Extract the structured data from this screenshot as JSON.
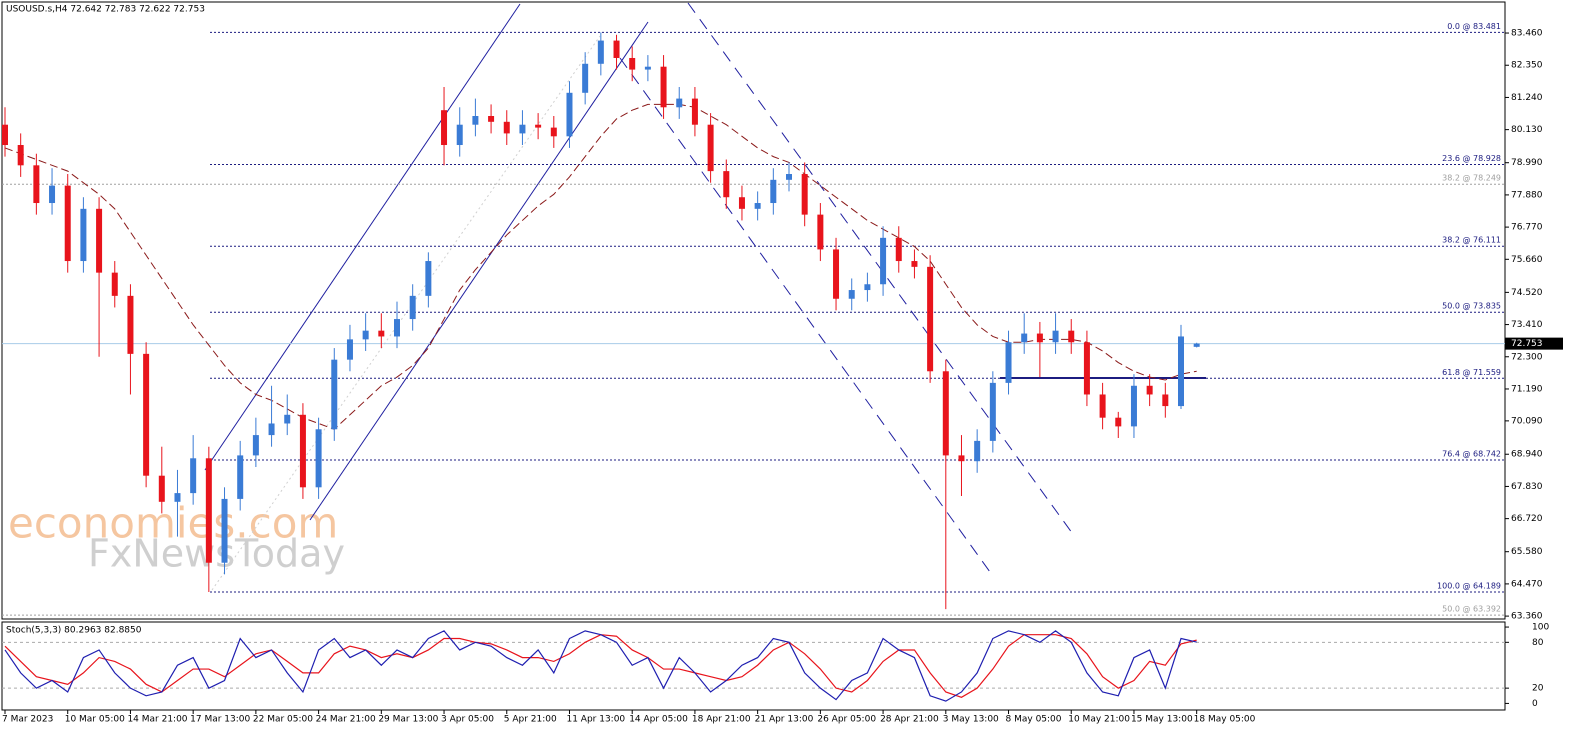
{
  "chart_data": [
    {
      "type": "candlestick",
      "header": "USOUSD.s,H4  72.642 72.783 72.622 72.753",
      "watermark": [
        "economies.com",
        "FxNewsToday"
      ],
      "categories": [
        "7 Mar 2023",
        null,
        null,
        null,
        "10 Mar 05:00",
        null,
        null,
        null,
        "14 Mar 21:00",
        null,
        null,
        null,
        "17 Mar 13:00",
        null,
        null,
        null,
        "22 Mar 05:00",
        null,
        null,
        null,
        "24 Mar 21:00",
        null,
        null,
        null,
        "29 Mar 13:00",
        null,
        null,
        null,
        "3 Apr 05:00",
        null,
        null,
        null,
        "5 Apr 21:00",
        null,
        null,
        null,
        "11 Apr 13:00",
        null,
        null,
        null,
        "14 Apr 05:00",
        null,
        null,
        null,
        "18 Apr 21:00",
        null,
        null,
        null,
        "21 Apr 13:00",
        null,
        null,
        null,
        "26 Apr 05:00",
        null,
        null,
        null,
        "28 Apr 21:00",
        null,
        null,
        null,
        "3 May 13:00",
        null,
        null,
        null,
        "8 May 05:00",
        null,
        null,
        null,
        "10 May 21:00",
        null,
        null,
        null,
        "15 May 13:00",
        null,
        null,
        null,
        "18 May 05:00"
      ],
      "open": [
        80.3,
        79.6,
        78.9,
        77.6,
        78.2,
        75.6,
        77.4,
        75.2,
        74.4,
        72.4,
        68.2,
        67.3,
        67.6,
        68.8,
        65.2,
        67.4,
        68.9,
        69.6,
        70.0,
        70.3,
        67.8,
        69.8,
        72.2,
        72.9,
        73.2,
        73.0,
        73.6,
        74.4,
        80.8,
        79.6,
        80.3,
        80.6,
        80.4,
        80.0,
        80.3,
        80.2,
        79.9,
        81.4,
        82.4,
        83.2,
        82.6,
        82.2,
        82.3,
        80.9,
        81.2,
        80.3,
        78.7,
        77.8,
        77.4,
        77.6,
        78.4,
        78.6,
        77.2,
        76.0,
        74.3,
        74.6,
        74.8,
        76.4,
        75.6,
        75.4,
        71.8,
        68.9,
        68.7,
        69.4,
        71.4,
        72.8,
        73.1,
        72.8,
        73.2,
        72.8,
        71.0,
        70.2,
        69.9,
        71.3,
        71.0,
        70.6,
        72.642
      ],
      "high": [
        80.9,
        80.0,
        79.3,
        78.8,
        78.6,
        77.8,
        77.8,
        75.6,
        74.8,
        72.8,
        69.2,
        68.4,
        69.6,
        69.2,
        67.8,
        69.4,
        70.2,
        71.3,
        71.0,
        70.7,
        70.2,
        72.6,
        73.4,
        73.8,
        73.8,
        74.2,
        74.8,
        75.9,
        81.6,
        80.9,
        81.2,
        81.0,
        80.8,
        80.8,
        80.7,
        80.6,
        81.8,
        82.8,
        83.48,
        83.4,
        83.0,
        82.7,
        82.7,
        81.6,
        81.6,
        80.7,
        79.1,
        78.2,
        78.0,
        78.8,
        79.0,
        79.0,
        77.6,
        76.4,
        75.0,
        75.2,
        76.8,
        76.8,
        76.0,
        75.8,
        72.2,
        69.6,
        69.8,
        71.8,
        73.2,
        73.8,
        73.5,
        73.8,
        73.6,
        73.2,
        71.4,
        70.4,
        71.7,
        71.7,
        71.4,
        73.4,
        72.783
      ],
      "low": [
        79.2,
        78.5,
        77.2,
        77.2,
        75.2,
        75.2,
        72.3,
        74.0,
        71.0,
        67.8,
        66.9,
        66.1,
        67.2,
        64.19,
        64.8,
        67.0,
        68.5,
        69.2,
        69.6,
        67.4,
        67.4,
        69.4,
        71.8,
        72.5,
        72.6,
        72.6,
        73.2,
        74.0,
        78.9,
        79.2,
        79.9,
        80.0,
        79.6,
        79.6,
        79.8,
        79.5,
        79.5,
        81.0,
        82.0,
        82.2,
        81.8,
        81.8,
        80.5,
        80.5,
        79.9,
        78.3,
        77.4,
        77.0,
        77.0,
        77.2,
        78.0,
        76.8,
        75.6,
        73.9,
        73.9,
        74.2,
        74.4,
        75.2,
        75.0,
        71.4,
        63.6,
        67.5,
        68.3,
        69.0,
        71.0,
        72.4,
        71.6,
        72.4,
        72.4,
        70.6,
        69.8,
        69.5,
        69.5,
        70.6,
        70.2,
        70.5,
        72.622
      ],
      "close": [
        79.6,
        78.9,
        77.6,
        78.2,
        75.6,
        77.4,
        75.2,
        74.4,
        72.4,
        68.2,
        67.3,
        67.6,
        68.8,
        65.2,
        67.4,
        68.9,
        69.6,
        70.0,
        70.3,
        67.8,
        69.8,
        72.2,
        72.9,
        73.2,
        73.0,
        73.6,
        74.4,
        75.6,
        79.6,
        80.3,
        80.6,
        80.4,
        80.0,
        80.3,
        80.2,
        79.9,
        81.4,
        82.4,
        83.2,
        82.6,
        82.2,
        82.3,
        80.9,
        81.2,
        80.3,
        78.7,
        77.8,
        77.4,
        77.6,
        78.4,
        78.6,
        77.2,
        76.0,
        74.3,
        74.6,
        74.8,
        76.4,
        75.6,
        75.4,
        71.8,
        68.9,
        68.7,
        69.4,
        71.4,
        72.8,
        73.1,
        72.8,
        73.2,
        72.8,
        71.0,
        70.2,
        69.9,
        71.3,
        71.0,
        70.6,
        73.0,
        72.753
      ],
      "up_color": "#3a7bd5",
      "down_color": "#e8141c",
      "ma": {
        "color": "#8b1a1a",
        "values": [
          79.5,
          79.3,
          79.1,
          78.9,
          78.7,
          78.3,
          77.9,
          77.4,
          76.6,
          75.8,
          75.0,
          74.2,
          73.4,
          72.7,
          72.0,
          71.4,
          71.0,
          70.8,
          70.5,
          70.2,
          70.0,
          69.8,
          70.3,
          70.8,
          71.3,
          71.6,
          72.0,
          72.6,
          73.6,
          74.6,
          75.3,
          75.9,
          76.5,
          77.0,
          77.5,
          77.9,
          78.5,
          79.2,
          79.9,
          80.5,
          80.8,
          81.0,
          81.0,
          81.0,
          80.9,
          80.6,
          80.3,
          79.9,
          79.5,
          79.2,
          79.0,
          78.6,
          78.2,
          77.8,
          77.4,
          77.0,
          76.7,
          76.4,
          76.1,
          75.6,
          74.8,
          74.0,
          73.4,
          73.0,
          72.8,
          72.8,
          72.9,
          72.9,
          72.9,
          72.8,
          72.5,
          72.1,
          71.8,
          71.6,
          71.5,
          71.7,
          71.8
        ]
      },
      "ylim": [
        84.53,
        63.26
      ],
      "yticks": [
        {
          "value": 83.46,
          "label": "83.460"
        },
        {
          "value": 82.35,
          "label": "82.350"
        },
        {
          "value": 81.24,
          "label": "81.240"
        },
        {
          "value": 80.13,
          "label": "80.130"
        },
        {
          "value": 78.99,
          "label": "78.990"
        },
        {
          "value": 77.88,
          "label": "77.880"
        },
        {
          "value": 76.77,
          "label": "76.770"
        },
        {
          "value": 75.66,
          "label": "75.660"
        },
        {
          "value": 74.52,
          "label": "74.520"
        },
        {
          "value": 73.41,
          "label": "73.410"
        },
        {
          "value": 72.3,
          "label": "72.300"
        },
        {
          "value": 71.19,
          "label": "71.190"
        },
        {
          "value": 70.09,
          "label": "70.090"
        },
        {
          "value": 68.94,
          "label": "68.940"
        },
        {
          "value": 67.83,
          "label": "67.830"
        },
        {
          "value": 66.72,
          "label": "66.720"
        },
        {
          "value": 65.58,
          "label": "65.580"
        },
        {
          "value": 64.47,
          "label": "64.470"
        },
        {
          "value": 63.36,
          "label": "63.360"
        }
      ],
      "fib_levels": [
        {
          "value": 83.481,
          "label": "0.0 @ 83.481",
          "color": "#1c1c80"
        },
        {
          "value": 78.928,
          "label": "23.6 @ 78.928",
          "color": "#1c1c80"
        },
        {
          "value": 78.249,
          "label": "38.2 @ 78.249",
          "color": "#a0a0a0"
        },
        {
          "value": 76.111,
          "label": "38.2 @ 76.111",
          "color": "#1c1c80"
        },
        {
          "value": 73.835,
          "label": "50.0 @ 73.835",
          "color": "#1c1c80"
        },
        {
          "value": 71.559,
          "label": "61.8 @ 71.559",
          "color": "#1c1c80"
        },
        {
          "value": 68.742,
          "label": "76.4 @ 68.742",
          "color": "#1c1c80"
        },
        {
          "value": 64.189,
          "label": "100.0 @ 64.189",
          "color": "#1c1c80"
        },
        {
          "value": 63.392,
          "label": "50.0 @ 63.392",
          "color": "#a0a0a0"
        }
      ],
      "last_price": 72.753
    },
    {
      "type": "line",
      "title": "Stoch(5,3,3) 80.2963 82.8850",
      "series": [
        {
          "color": "#1f1fb0",
          "values": [
            70,
            40,
            20,
            30,
            15,
            60,
            70,
            40,
            20,
            10,
            15,
            50,
            60,
            20,
            30,
            85,
            60,
            70,
            40,
            15,
            70,
            85,
            60,
            70,
            50,
            70,
            60,
            85,
            95,
            70,
            80,
            75,
            60,
            50,
            70,
            40,
            85,
            95,
            90,
            80,
            50,
            60,
            20,
            60,
            40,
            15,
            30,
            50,
            60,
            85,
            80,
            40,
            20,
            5,
            30,
            40,
            85,
            70,
            60,
            10,
            3,
            15,
            40,
            85,
            95,
            90,
            80,
            95,
            80,
            40,
            15,
            10,
            60,
            70,
            20,
            85,
            80.2963
          ]
        },
        {
          "color": "#e8141c",
          "values": [
            75,
            55,
            35,
            30,
            25,
            40,
            60,
            55,
            45,
            25,
            15,
            30,
            45,
            45,
            35,
            50,
            65,
            70,
            55,
            40,
            40,
            65,
            75,
            70,
            60,
            65,
            60,
            70,
            85,
            85,
            80,
            78,
            70,
            60,
            60,
            55,
            65,
            80,
            90,
            88,
            70,
            60,
            45,
            45,
            40,
            35,
            30,
            35,
            50,
            70,
            80,
            65,
            45,
            20,
            15,
            30,
            55,
            70,
            70,
            40,
            15,
            8,
            20,
            45,
            75,
            90,
            90,
            90,
            85,
            65,
            35,
            20,
            30,
            55,
            50,
            78,
            82.885
          ]
        }
      ],
      "ylim": [
        -6,
        104
      ],
      "yticks": [
        100,
        80,
        20,
        0
      ],
      "levels": [
        80,
        20
      ]
    }
  ]
}
